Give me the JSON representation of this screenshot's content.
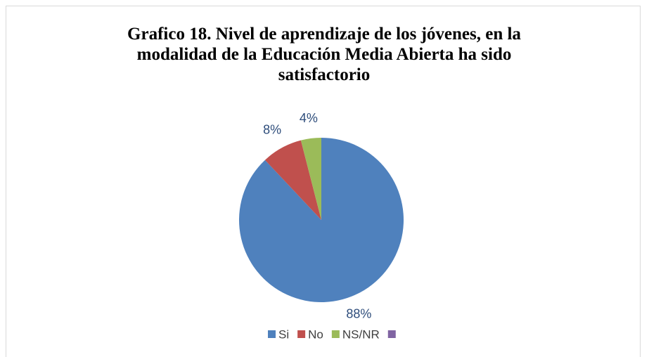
{
  "chart_data": {
    "type": "pie",
    "title": "Grafico 18. Nivel de aprendizaje de los jóvenes, en la modalidad de la Educación Media Abierta ha sido satisfactorio",
    "categories": [
      "Si",
      "No",
      "NS/NR",
      null
    ],
    "values": [
      88,
      8,
      4,
      0
    ],
    "value_labels": [
      "88%",
      "8%",
      "4%",
      null
    ],
    "colors": [
      "#4f81bd",
      "#c0504d",
      "#9bbb59",
      "#8064a2"
    ],
    "legend": "bottom"
  }
}
